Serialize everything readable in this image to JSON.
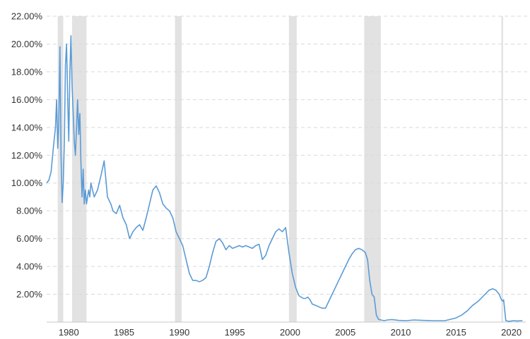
{
  "chart_data": {
    "type": "line",
    "title": "",
    "xlabel": "",
    "ylabel": "",
    "xlim": [
      1978.0,
      2021.3
    ],
    "ylim": [
      0,
      22
    ],
    "y_ticks": [
      {
        "value": 2,
        "label": "2.00%"
      },
      {
        "value": 4,
        "label": "4.00%"
      },
      {
        "value": 6,
        "label": "6.00%"
      },
      {
        "value": 8,
        "label": "8.00%"
      },
      {
        "value": 10,
        "label": "10.00%"
      },
      {
        "value": 12,
        "label": "12.00%"
      },
      {
        "value": 14,
        "label": "14.00%"
      },
      {
        "value": 16,
        "label": "16.00%"
      },
      {
        "value": 18,
        "label": "18.00%"
      },
      {
        "value": 20,
        "label": "20.00%"
      },
      {
        "value": 22,
        "label": "22.00%"
      }
    ],
    "x_ticks": [
      {
        "value": 1980,
        "label": "1980"
      },
      {
        "value": 1985,
        "label": "1985"
      },
      {
        "value": 1990,
        "label": "1990"
      },
      {
        "value": 1995,
        "label": "1995"
      },
      {
        "value": 2000,
        "label": "2000"
      },
      {
        "value": 2005,
        "label": "2005"
      },
      {
        "value": 2010,
        "label": "2010"
      },
      {
        "value": 2015,
        "label": "2015"
      },
      {
        "value": 2020,
        "label": "2020"
      }
    ],
    "grid": "horizontal dashed",
    "recession_shading": [
      {
        "start": 1979.0,
        "end": 1979.5
      },
      {
        "start": 1980.3,
        "end": 1981.6
      },
      {
        "start": 1989.6,
        "end": 1990.2
      },
      {
        "start": 1999.9,
        "end": 2000.6
      },
      {
        "start": 2006.7,
        "end": 2008.2
      },
      {
        "start": 2019.1,
        "end": 2019.25
      }
    ],
    "colors": {
      "line": "#5b9bd5",
      "shading": "#e2e2e2",
      "grid": "#d9d9d9"
    },
    "series": [
      {
        "x": [
          1978.0,
          1978.2,
          1978.4,
          1978.6,
          1978.8,
          1978.9,
          1979.0,
          1979.1,
          1979.2,
          1979.3,
          1979.4,
          1979.5,
          1979.6,
          1979.7,
          1979.8,
          1979.9,
          1980.0,
          1980.1,
          1980.2,
          1980.3,
          1980.4,
          1980.5,
          1980.6,
          1980.7,
          1980.8,
          1980.9,
          1981.0,
          1981.1,
          1981.2,
          1981.3,
          1981.4,
          1981.5,
          1981.6,
          1981.7,
          1981.8,
          1981.9,
          1982.0,
          1982.3,
          1982.6,
          1982.9,
          1983.2,
          1983.5,
          1983.8,
          1984.0,
          1984.3,
          1984.6,
          1984.9,
          1985.2,
          1985.5,
          1985.8,
          1986.1,
          1986.4,
          1986.7,
          1987.0,
          1987.3,
          1987.6,
          1987.9,
          1988.2,
          1988.5,
          1988.8,
          1989.1,
          1989.4,
          1989.7,
          1990.0,
          1990.3,
          1990.6,
          1990.9,
          1991.2,
          1991.5,
          1991.8,
          1992.1,
          1992.4,
          1992.7,
          1993.0,
          1993.3,
          1993.6,
          1993.9,
          1994.2,
          1994.5,
          1994.8,
          1995.1,
          1995.4,
          1995.7,
          1996.0,
          1996.3,
          1996.6,
          1996.9,
          1997.2,
          1997.5,
          1997.8,
          1998.1,
          1998.4,
          1998.7,
          1999.0,
          1999.3,
          1999.6,
          1999.9,
          2000.2,
          2000.5,
          2000.8,
          2001.0,
          2001.2,
          2001.4,
          2001.6,
          2001.8,
          2002.0,
          2002.3,
          2002.6,
          2002.9,
          2003.2,
          2003.5,
          2003.8,
          2004.1,
          2004.4,
          2004.7,
          2005.0,
          2005.3,
          2005.6,
          2005.9,
          2006.2,
          2006.5,
          2006.8,
          2007.0,
          2007.2,
          2007.4,
          2007.6,
          2007.8,
          2008.0,
          2008.2,
          2008.5,
          2008.8,
          2009.2,
          2009.8,
          2010.5,
          2011.2,
          2012.0,
          2013.0,
          2014.0,
          2015.0,
          2015.5,
          2016.0,
          2016.5,
          2017.0,
          2017.5,
          2018.0,
          2018.3,
          2018.6,
          2018.9,
          2019.1,
          2019.2,
          2019.3,
          2019.5,
          2019.8,
          2020.0,
          2020.2,
          2020.5,
          2021.0
        ],
        "values": [
          10.0,
          10.2,
          10.8,
          12.5,
          14.0,
          16.0,
          12.5,
          14.3,
          19.8,
          12.0,
          8.6,
          10.0,
          13.0,
          18.5,
          20.0,
          16.0,
          13.0,
          18.0,
          20.6,
          17.0,
          15.0,
          13.0,
          12.0,
          14.0,
          16.0,
          13.5,
          15.0,
          11.5,
          9.0,
          11.0,
          8.5,
          9.5,
          8.5,
          9.0,
          9.5,
          9.0,
          10.0,
          9.0,
          9.5,
          10.5,
          11.6,
          9.0,
          8.5,
          8.0,
          7.8,
          8.4,
          7.5,
          7.0,
          6.0,
          6.5,
          6.8,
          7.0,
          6.6,
          7.5,
          8.5,
          9.5,
          9.8,
          9.3,
          8.5,
          8.2,
          8.0,
          7.5,
          6.5,
          6.0,
          5.5,
          4.5,
          3.5,
          3.0,
          3.0,
          2.9,
          3.0,
          3.2,
          4.0,
          5.0,
          5.8,
          6.0,
          5.7,
          5.2,
          5.5,
          5.3,
          5.4,
          5.5,
          5.4,
          5.5,
          5.4,
          5.3,
          5.5,
          5.6,
          4.5,
          4.8,
          5.5,
          6.0,
          6.5,
          6.7,
          6.5,
          6.8,
          5.0,
          3.5,
          2.5,
          1.9,
          1.8,
          1.7,
          1.7,
          1.8,
          1.6,
          1.3,
          1.2,
          1.1,
          1.0,
          1.0,
          1.5,
          2.0,
          2.5,
          3.0,
          3.5,
          4.0,
          4.5,
          4.9,
          5.2,
          5.3,
          5.2,
          5.0,
          4.5,
          3.0,
          2.0,
          1.8,
          0.5,
          0.2,
          0.15,
          0.1,
          0.15,
          0.18,
          0.12,
          0.1,
          0.15,
          0.12,
          0.1,
          0.1,
          0.3,
          0.5,
          0.8,
          1.2,
          1.5,
          1.9,
          2.3,
          2.4,
          2.3,
          2.0,
          1.6,
          1.5,
          1.6,
          0.1,
          0.05,
          0.08,
          0.1,
          0.08,
          0.1
        ]
      }
    ]
  }
}
